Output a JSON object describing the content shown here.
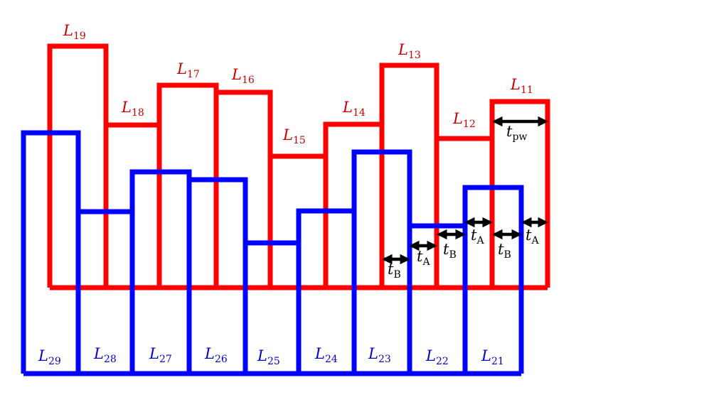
{
  "diagram": {
    "colors": {
      "red": "#ff0000",
      "blue": "#0000ff",
      "black": "#000000"
    },
    "red_levels": [
      {
        "base": "L",
        "sub": "19"
      },
      {
        "base": "L",
        "sub": "18"
      },
      {
        "base": "L",
        "sub": "17"
      },
      {
        "base": "L",
        "sub": "16"
      },
      {
        "base": "L",
        "sub": "15"
      },
      {
        "base": "L",
        "sub": "14"
      },
      {
        "base": "L",
        "sub": "13"
      },
      {
        "base": "L",
        "sub": "12"
      },
      {
        "base": "L",
        "sub": "11"
      }
    ],
    "blue_levels": [
      {
        "base": "L",
        "sub": "29"
      },
      {
        "base": "L",
        "sub": "28"
      },
      {
        "base": "L",
        "sub": "27"
      },
      {
        "base": "L",
        "sub": "26"
      },
      {
        "base": "L",
        "sub": "25"
      },
      {
        "base": "L",
        "sub": "24"
      },
      {
        "base": "L",
        "sub": "23"
      },
      {
        "base": "L",
        "sub": "22"
      },
      {
        "base": "L",
        "sub": "21"
      }
    ],
    "time_labels": [
      {
        "base": "t",
        "sub": "B"
      },
      {
        "base": "t",
        "sub": "A"
      },
      {
        "base": "t",
        "sub": "B"
      },
      {
        "base": "t",
        "sub": "A"
      },
      {
        "base": "t",
        "sub": "B"
      },
      {
        "base": "t",
        "sub": "A"
      },
      {
        "base": "t",
        "sub": "pw"
      }
    ]
  }
}
